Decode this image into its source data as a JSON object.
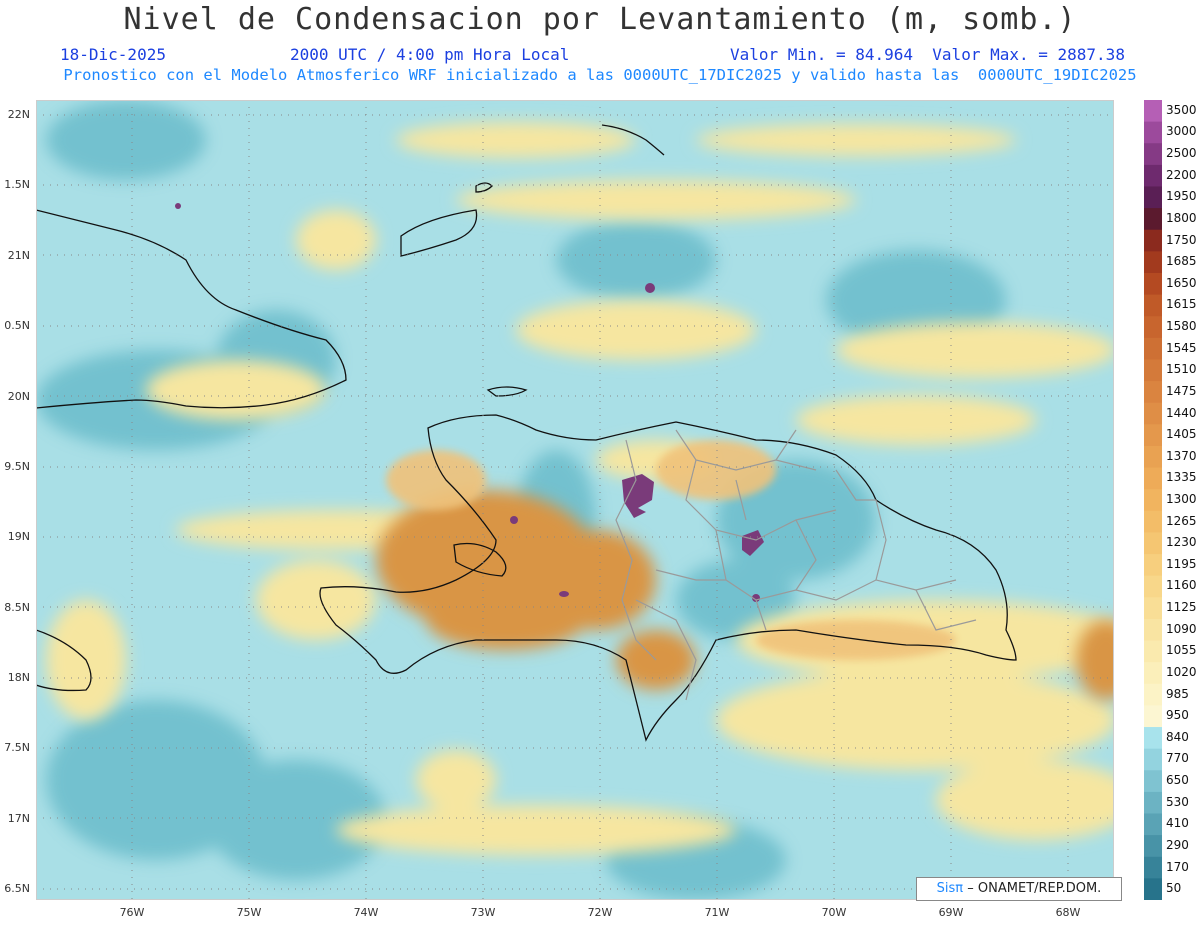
{
  "header": {
    "title": "Nivel de Condensacion por Levantamiento (m, somb.)",
    "date": "18-Dic-2025",
    "time": "2000 UTC / 4:00 pm Hora Local",
    "min_max": "Valor Min. = 84.964  Valor Max. = 2887.38",
    "forecast": "Pronostico con el Modelo Atmosferico WRF inicializado a las 0000UTC_17DIC2025 y valido hasta las  0000UTC_19DIC2025"
  },
  "map": {
    "lat_labels": [
      "22N",
      "1.5N",
      "21N",
      "0.5N",
      "20N",
      "9.5N",
      "19N",
      "8.5N",
      "18N",
      "7.5N",
      "17N",
      "6.5N"
    ],
    "lon_labels": [
      "76W",
      "75W",
      "74W",
      "73W",
      "72W",
      "71W",
      "70W",
      "69W",
      "68W"
    ],
    "colors": {
      "ocean": "#a9dfe6",
      "low": "#5fb3c2",
      "dry": "#f6e6a0",
      "orange": "#d99545",
      "purple": "#7a3b7a",
      "coast": "#111111",
      "border": "#9a9a9a"
    }
  },
  "legend": {
    "levels": [
      "3500",
      "3000",
      "2500",
      "2200",
      "1950",
      "1800",
      "1750",
      "1685",
      "1650",
      "1615",
      "1580",
      "1545",
      "1510",
      "1475",
      "1440",
      "1405",
      "1370",
      "1335",
      "1300",
      "1265",
      "1230",
      "1195",
      "1160",
      "1125",
      "1090",
      "1055",
      "1020",
      "985",
      "950",
      "840",
      "770",
      "650",
      "530",
      "410",
      "290",
      "170",
      "50"
    ],
    "colors": [
      "#b55fb5",
      "#9c4a9c",
      "#853a85",
      "#6e2a6e",
      "#5a1f55",
      "#5b1a2e",
      "#8b2a1e",
      "#a23a1e",
      "#b44a22",
      "#c05a28",
      "#c8652e",
      "#ce7034",
      "#d47a3a",
      "#da8440",
      "#df8e46",
      "#e4984c",
      "#e9a252",
      "#eeab58",
      "#f1b45f",
      "#f3bd68",
      "#f5c672",
      "#f7cf7e",
      "#f8d78a",
      "#f9de96",
      "#f9e4a2",
      "#faeaae",
      "#fbefba",
      "#fcf3c6",
      "#fcf6d2",
      "#a8e3ec",
      "#93d3df",
      "#7fc3d1",
      "#6cb3c3",
      "#5aa3b5",
      "#4893a7",
      "#378399",
      "#27738b"
    ]
  },
  "credit": {
    "logo": "Sisπ",
    "text": "– ONAMET/REP.DOM."
  }
}
